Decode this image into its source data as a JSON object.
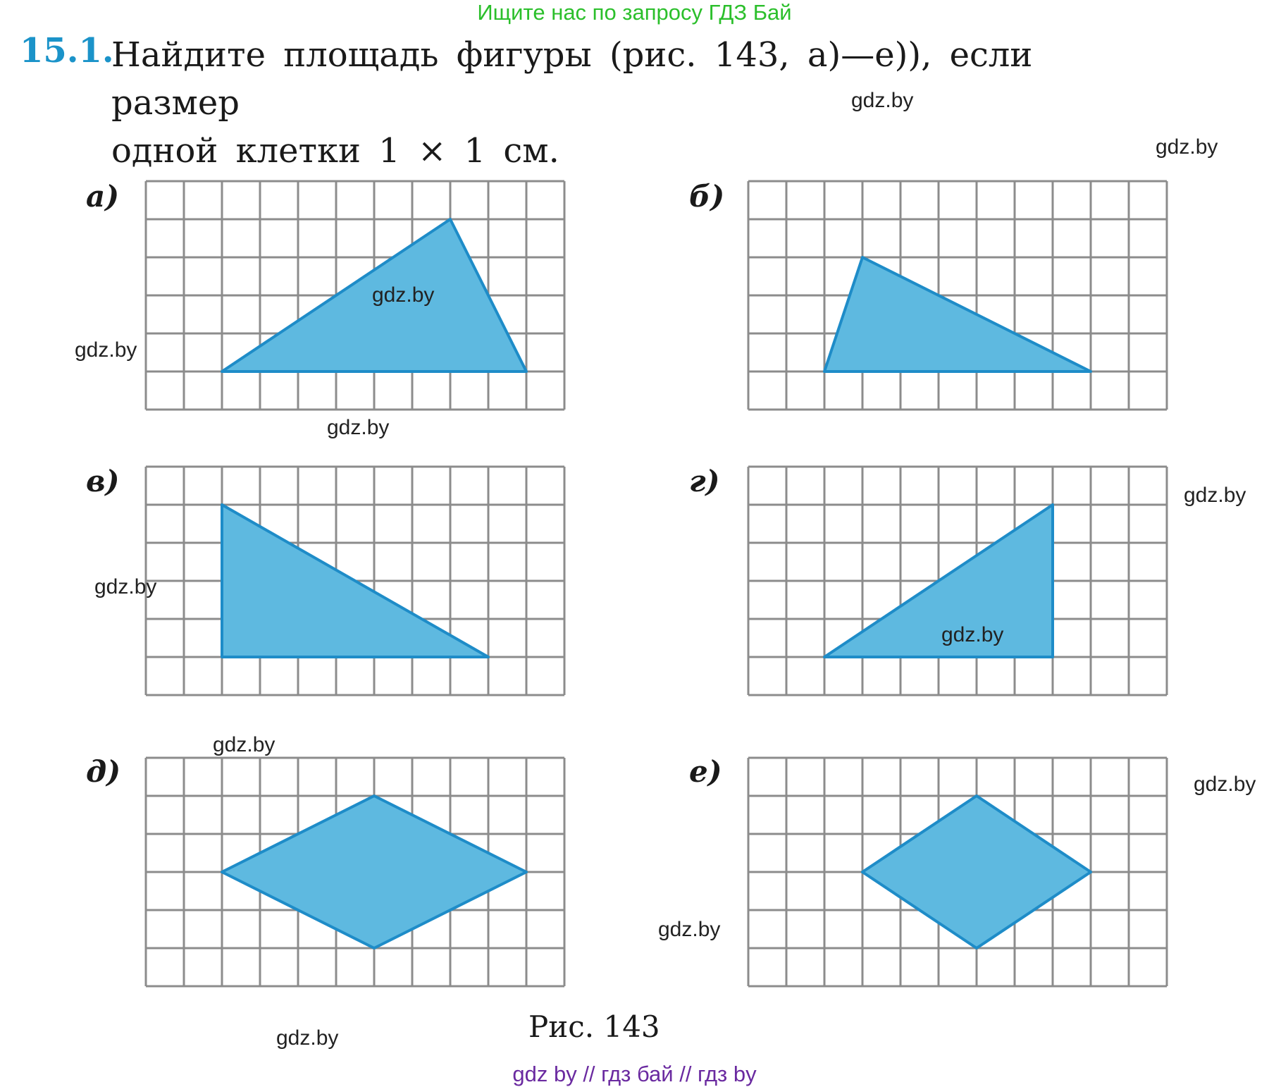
{
  "header": {
    "banner": "Ищите нас по запросу ГДЗ Бай"
  },
  "problem": {
    "number": "15.1.",
    "text_line1": "Найдите площадь фигуры (рис. 143, а)—е)), если размер",
    "text_line2": "одной клетки 1 × 1 см."
  },
  "figures": [
    {
      "label": "а)",
      "vertices": [
        [
          2,
          5
        ],
        [
          8,
          1
        ],
        [
          10,
          5
        ]
      ]
    },
    {
      "label": "б)",
      "vertices": [
        [
          2,
          5
        ],
        [
          3,
          2
        ],
        [
          9,
          5
        ]
      ]
    },
    {
      "label": "в)",
      "vertices": [
        [
          2,
          1
        ],
        [
          2,
          5
        ],
        [
          9,
          5
        ]
      ]
    },
    {
      "label": "г)",
      "vertices": [
        [
          2,
          5
        ],
        [
          8,
          1
        ],
        [
          8,
          5
        ]
      ]
    },
    {
      "label": "д)",
      "vertices": [
        [
          2,
          3
        ],
        [
          6,
          1
        ],
        [
          10,
          3
        ],
        [
          6,
          5
        ]
      ]
    },
    {
      "label": "е)",
      "vertices": [
        [
          3,
          3
        ],
        [
          6,
          1
        ],
        [
          9,
          3
        ],
        [
          6,
          5
        ]
      ]
    }
  ],
  "grid": {
    "columns": 11,
    "rows": 6,
    "line_color": "#8c8c8c",
    "fill_color": "#5eb9e0",
    "stroke_color": "#1e8cc8"
  },
  "caption": "Рис. 143",
  "watermarks": [
    "gdz.by",
    "gdz.by",
    "gdz.by",
    "gdz.by",
    "gdz.by",
    "gdz.by",
    "gdz.by",
    "gdz.by",
    "gdz.by",
    "gdz.by",
    "gdz.by",
    "gdz.by"
  ],
  "footer": "gdz by  //  гдз бай  //  гдз by"
}
